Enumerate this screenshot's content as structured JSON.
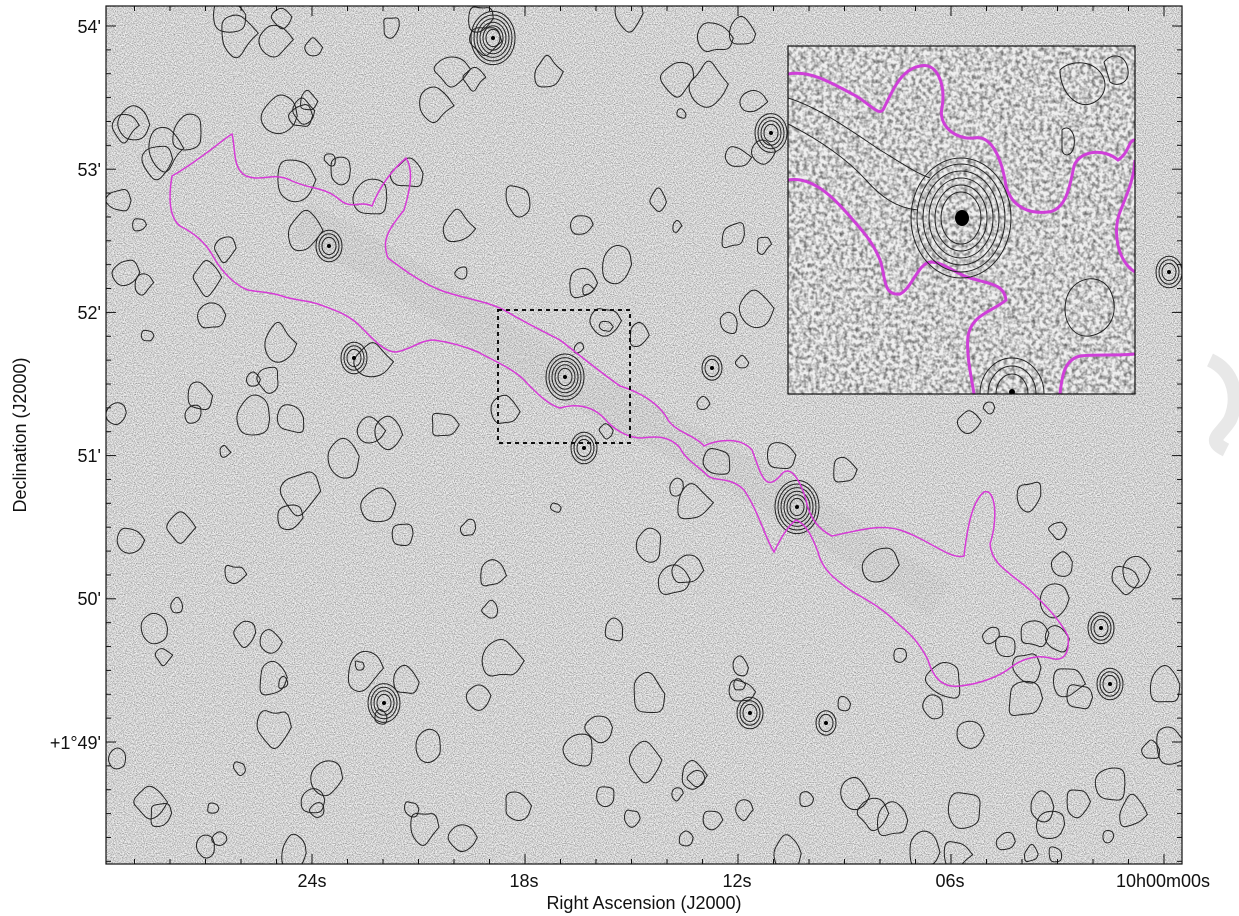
{
  "figure": {
    "xlabel": "Right Ascension (J2000)",
    "ylabel": "Declination (J2000)",
    "x_ticks": [
      "24s",
      "18s",
      "12s",
      "06s",
      "10h00m00s"
    ],
    "y_ticks": [
      "54'",
      "53'",
      "52'",
      "51'",
      "50'",
      "+1°49'"
    ],
    "colors": {
      "radio_contours": "#222222",
      "filament_contour": "#d63ad6",
      "inset_box_stroke": "#111111"
    },
    "inset": {
      "magnified_region": "dashed-box"
    }
  }
}
